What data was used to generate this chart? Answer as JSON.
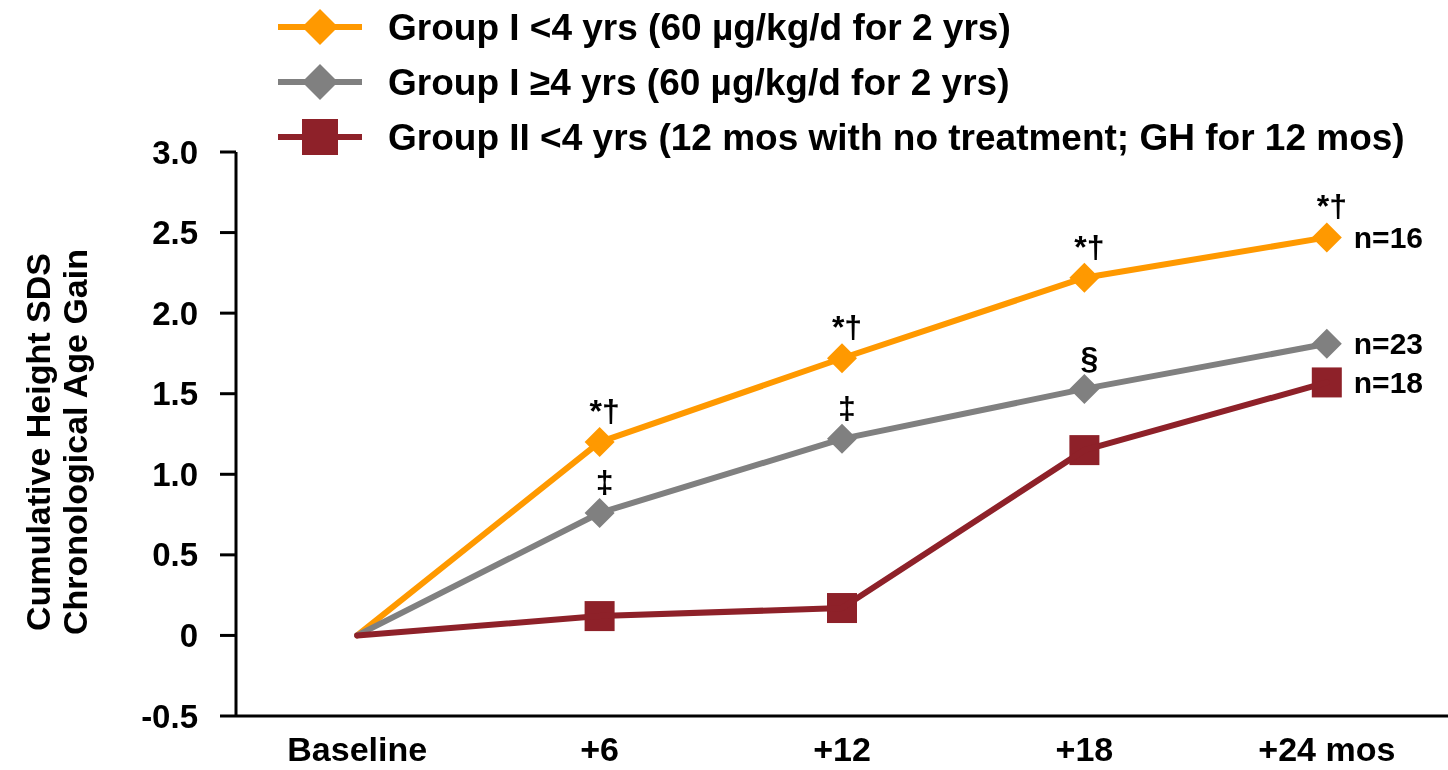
{
  "chart_data": {
    "type": "line",
    "ylabel": "Cumulative Height SDS\nChronological Age Gain",
    "categories": [
      "Baseline",
      "+6",
      "+12",
      "+18",
      "+24 mos"
    ],
    "series": [
      {
        "name": "Group I <4 yrs (60 µg/kg/d for 2 yrs)",
        "color": "#ff9900",
        "marker": "diamond",
        "values": [
          0,
          1.2,
          1.72,
          2.22,
          2.47
        ]
      },
      {
        "name": "Group I ≥4 yrs (60 µg/kg/d for 2 yrs)",
        "color": "#808080",
        "marker": "diamond",
        "values": [
          0,
          0.76,
          1.22,
          1.53,
          1.81
        ]
      },
      {
        "name": "Group II <4 yrs (12 mos with no treatment; GH for 12 mos)",
        "color": "#8e2129",
        "marker": "square",
        "values": [
          0,
          0.12,
          0.17,
          1.15,
          1.57
        ]
      }
    ],
    "ylim": [
      -0.5,
      3
    ],
    "yticks": [
      -0.5,
      0,
      0.5,
      {
        "value": 1,
        "label": "1.0"
      },
      1.5,
      {
        "value": 2,
        "label": "2.0"
      },
      2.5,
      {
        "value": 3,
        "label": "3.0"
      }
    ],
    "legend": "top",
    "grid": false,
    "annotations": [
      {
        "text": "*†",
        "x": "+6",
        "y": 1.2
      },
      {
        "text": "‡",
        "x": "+6",
        "y": 0.76
      },
      {
        "text": "*†",
        "x": "+12",
        "y": 1.72
      },
      {
        "text": "‡",
        "x": "+12",
        "y": 1.22
      },
      {
        "text": "*†",
        "x": "+18",
        "y": 2.22
      },
      {
        "text": "§",
        "x": "+18",
        "y": 1.53
      },
      {
        "text": "*†",
        "x": "+24 mos",
        "y": 2.47
      },
      "n=16",
      "n=23",
      "n=18"
    ]
  }
}
